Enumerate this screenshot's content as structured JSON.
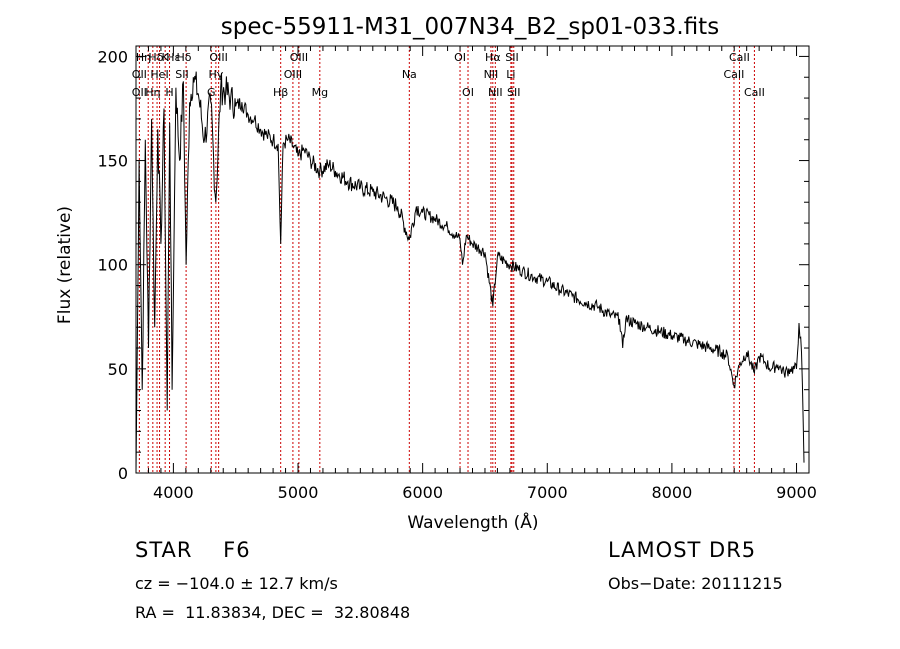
{
  "chart_data": {
    "type": "line",
    "title": "spec-55911-M31_007N34_B2_sp01-033.fits",
    "xlabel": "Wavelength (Å)",
    "ylabel": "Flux (relative)",
    "xlim": [
      3700,
      9100
    ],
    "ylim": [
      0,
      205
    ],
    "xticks": [
      4000,
      5000,
      6000,
      7000,
      8000,
      9000
    ],
    "yticks": [
      0,
      50,
      100,
      150,
      200
    ],
    "grid": false,
    "line_color": "#000000",
    "marker_color": "#cc0000",
    "spectrum": {
      "x": [
        3700,
        3725,
        3750,
        3775,
        3800,
        3825,
        3850,
        3875,
        3900,
        3925,
        3950,
        3970,
        3990,
        4020,
        4050,
        4080,
        4102,
        4130,
        4160,
        4200,
        4250,
        4300,
        4340,
        4380,
        4420,
        4460,
        4500,
        4550,
        4600,
        4650,
        4700,
        4750,
        4800,
        4840,
        4861,
        4880,
        4920,
        4960,
        5000,
        5050,
        5100,
        5175,
        5250,
        5300,
        5400,
        5500,
        5600,
        5700,
        5800,
        5893,
        5950,
        6000,
        6100,
        6200,
        6300,
        6320,
        6350,
        6400,
        6500,
        6563,
        6600,
        6700,
        6800,
        6900,
        7000,
        7100,
        7200,
        7300,
        7400,
        7500,
        7580,
        7605,
        7630,
        7700,
        7800,
        7900,
        8000,
        8100,
        8200,
        8300,
        8400,
        8450,
        8498,
        8542,
        8600,
        8662,
        8700,
        8750,
        8800,
        8850,
        8900,
        8950,
        9000,
        9020,
        9040,
        9060
      ],
      "y": [
        0,
        150,
        40,
        160,
        60,
        170,
        70,
        165,
        110,
        175,
        30,
        168,
        40,
        185,
        150,
        188,
        100,
        178,
        190,
        182,
        160,
        178,
        130,
        185,
        183,
        180,
        176,
        178,
        172,
        170,
        165,
        162,
        160,
        158,
        110,
        158,
        160,
        157,
        152,
        155,
        150,
        145,
        148,
        145,
        140,
        137,
        135,
        132,
        128,
        112,
        128,
        125,
        122,
        118,
        112,
        100,
        114,
        110,
        106,
        80,
        104,
        100,
        97,
        94,
        92,
        88,
        85,
        82,
        80,
        76,
        74,
        60,
        74,
        72,
        70,
        68,
        66,
        64,
        62,
        60,
        58,
        56,
        42,
        52,
        58,
        48,
        56,
        53,
        50,
        52,
        48,
        50,
        50,
        72,
        58,
        5
      ]
    },
    "line_markers": [
      {
        "wavelength": 3727,
        "labels": [
          "OII"
        ]
      },
      {
        "wavelength": 3798,
        "labels": [
          "Hη"
        ]
      },
      {
        "wavelength": 3835,
        "labels": [
          "Hη"
        ]
      },
      {
        "wavelength": 3869,
        "labels": [
          "NeIII"
        ]
      },
      {
        "wavelength": 3889,
        "labels": [
          "Hζ"
        ]
      },
      {
        "wavelength": 3934,
        "labels": [
          "K"
        ]
      },
      {
        "wavelength": 3969,
        "labels": [
          "H"
        ]
      },
      {
        "wavelength": 4102,
        "labels": [
          "Hδ"
        ]
      },
      {
        "wavelength": 4304,
        "labels": [
          "G"
        ]
      },
      {
        "wavelength": 4341,
        "labels": [
          "Hγ"
        ]
      },
      {
        "wavelength": 4363,
        "labels": [
          "OIII"
        ]
      },
      {
        "wavelength": 4861,
        "labels": [
          "Hβ"
        ]
      },
      {
        "wavelength": 4959,
        "labels": [
          "OIII"
        ]
      },
      {
        "wavelength": 5007,
        "labels": [
          "OIII"
        ]
      },
      {
        "wavelength": 5175,
        "labels": [
          "Mg"
        ]
      },
      {
        "wavelength": 5893,
        "labels": [
          "Na"
        ]
      },
      {
        "wavelength": 6300,
        "labels": [
          "OI"
        ]
      },
      {
        "wavelength": 6364,
        "labels": [
          "OI"
        ]
      },
      {
        "wavelength": 6548,
        "labels": [
          "NII"
        ]
      },
      {
        "wavelength": 6563,
        "labels": [
          "Hα"
        ]
      },
      {
        "wavelength": 6583,
        "labels": [
          "NII"
        ]
      },
      {
        "wavelength": 6708,
        "labels": [
          "Li"
        ]
      },
      {
        "wavelength": 6717,
        "labels": [
          "SII"
        ]
      },
      {
        "wavelength": 6731,
        "labels": [
          "SII"
        ]
      },
      {
        "wavelength": 8498,
        "labels": [
          "CaII"
        ]
      },
      {
        "wavelength": 8542,
        "labels": [
          "CaII"
        ]
      },
      {
        "wavelength": 8662,
        "labels": [
          "CaII"
        ]
      }
    ],
    "marker_label_rows": [
      {
        "row": 0,
        "items": [
          {
            "text": "Hη",
            "x": 3760
          },
          {
            "text": "Hδ",
            "x": 3860
          },
          {
            "text": "K",
            "x": 3934
          },
          {
            "text": "Hε",
            "x": 4000
          },
          {
            "text": "Hδ",
            "x": 4085
          },
          {
            "text": "OIII",
            "x": 4363
          },
          {
            "text": "OIII",
            "x": 5007
          },
          {
            "text": "OI",
            "x": 6300
          },
          {
            "text": "Hα",
            "x": 6563
          },
          {
            "text": "SII",
            "x": 6717
          },
          {
            "text": "CaII",
            "x": 8542
          }
        ]
      },
      {
        "row": 1,
        "items": [
          {
            "text": "OII",
            "x": 3727
          },
          {
            "text": "HeI",
            "x": 3889
          },
          {
            "text": "SII",
            "x": 4069
          },
          {
            "text": "Hγ",
            "x": 4341
          },
          {
            "text": "OIII",
            "x": 4959
          },
          {
            "text": "Na",
            "x": 5893
          },
          {
            "text": "NII",
            "x": 6548
          },
          {
            "text": "Li",
            "x": 6708
          },
          {
            "text": "CaII",
            "x": 8498
          }
        ]
      },
      {
        "row": 2,
        "items": [
          {
            "text": "OII",
            "x": 3727
          },
          {
            "text": "Hη",
            "x": 3835
          },
          {
            "text": "H",
            "x": 3969
          },
          {
            "text": "G",
            "x": 4304
          },
          {
            "text": "Hβ",
            "x": 4861
          },
          {
            "text": "Mg",
            "x": 5175
          },
          {
            "text": "OI",
            "x": 6364
          },
          {
            "text": "NII",
            "x": 6583
          },
          {
            "text": "SII",
            "x": 6731
          },
          {
            "text": "CaII",
            "x": 8662
          }
        ]
      }
    ]
  },
  "info": {
    "star_type": "STAR    F6",
    "survey": "LAMOST DR5",
    "cz": "cz = −104.0 ± 12.7 km/s",
    "obs_date": "Obs−Date: 20111215",
    "radec": "RA =  11.83834, DEC =  32.80848"
  }
}
